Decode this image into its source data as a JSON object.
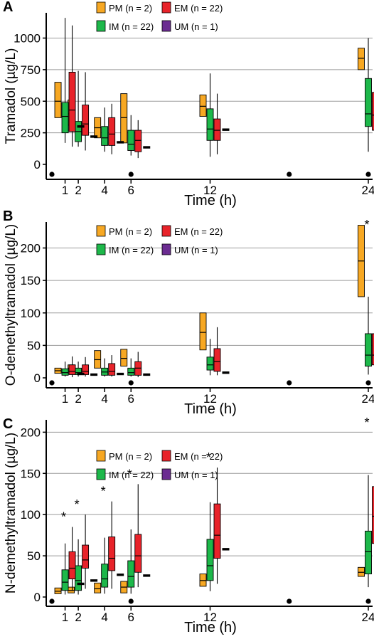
{
  "colors": {
    "PM": "#f7a823",
    "EM": "#e8232a",
    "IM": "#1db84a",
    "UM": "#6b2c91"
  },
  "chart_data": [
    {
      "type": "box",
      "panel_label": "A",
      "xlabel": "Time (h)",
      "ylabel": "Tramadol (µg/L)",
      "x_ticks": [
        1,
        2,
        4,
        6,
        12,
        24
      ],
      "y_ticks": [
        0,
        250,
        500,
        750,
        1000
      ],
      "ylim": [
        -45,
        1200
      ],
      "grid": true,
      "legend": {
        "position": "top-center",
        "entries": [
          "PM (n = 2)",
          "EM (n = 22)",
          "IM (n = 22)",
          "UM (n = 1)"
        ]
      },
      "dots_at_x": [
        0,
        6,
        18,
        24
      ],
      "series": [
        {
          "name": "PM",
          "boxes": [
            {
              "t": 1,
              "min": null,
              "q1": 370,
              "median": 500,
              "q3": 650,
              "max": null
            },
            {
              "t": 2,
              "min": null,
              "q1": 310,
              "median": 400,
              "q3": 510,
              "max": null
            },
            {
              "t": 4,
              "min": null,
              "q1": 210,
              "median": 290,
              "q3": 370,
              "max": null
            },
            {
              "t": 6,
              "min": null,
              "q1": 170,
              "median": 370,
              "q3": 560,
              "max": null
            },
            {
              "t": 12,
              "min": null,
              "q1": 380,
              "median": 460,
              "q3": 550,
              "max": null
            },
            {
              "t": 24,
              "min": null,
              "q1": 750,
              "median": 840,
              "q3": 920,
              "max": null
            }
          ]
        },
        {
          "name": "IM",
          "boxes": [
            {
              "t": 1,
              "min": 170,
              "q1": 250,
              "median": 380,
              "q3": 490,
              "max": 1160
            },
            {
              "t": 2,
              "min": 140,
              "q1": 180,
              "median": 260,
              "q3": 340,
              "max": 740
            },
            {
              "t": 4,
              "min": 100,
              "q1": 150,
              "median": 210,
              "q3": 300,
              "max": 450
            },
            {
              "t": 6,
              "min": 70,
              "q1": 110,
              "median": 160,
              "q3": 270,
              "max": 390
            },
            {
              "t": 12,
              "min": 60,
              "q1": 190,
              "median": 280,
              "q3": 440,
              "max": 720
            },
            {
              "t": 24,
              "min": 100,
              "q1": 300,
              "median": 400,
              "q3": 680,
              "max": 1000
            }
          ]
        },
        {
          "name": "EM",
          "boxes": [
            {
              "t": 1,
              "min": 140,
              "q1": 260,
              "median": 430,
              "q3": 730,
              "max": 1100
            },
            {
              "t": 2,
              "min": 110,
              "q1": 230,
              "median": 320,
              "q3": 470,
              "max": 730
            },
            {
              "t": 4,
              "min": 80,
              "q1": 150,
              "median": 240,
              "q3": 370,
              "max": 480
            },
            {
              "t": 6,
              "min": 50,
              "q1": 100,
              "median": 190,
              "q3": 270,
              "max": 350
            },
            {
              "t": 12,
              "min": 80,
              "q1": 190,
              "median": 270,
              "q3": 360,
              "max": 560
            },
            {
              "t": 24,
              "min": 90,
              "q1": 270,
              "median": 390,
              "q3": 570,
              "max": 960
            }
          ]
        },
        {
          "name": "UM",
          "points": [
            {
              "t": 1,
              "value": 300
            },
            {
              "t": 2,
              "value": 220
            },
            {
              "t": 4,
              "value": 175
            },
            {
              "t": 6,
              "value": 135
            },
            {
              "t": 12,
              "value": 275
            },
            {
              "t": 24,
              "value": 340
            }
          ]
        }
      ],
      "annotations": []
    },
    {
      "type": "box",
      "panel_label": "B",
      "xlabel": "Time (h)",
      "ylabel": "O-demethyltramadol (µg/L)",
      "x_ticks": [
        1,
        2,
        4,
        6,
        12,
        24
      ],
      "y_ticks": [
        0,
        50,
        100,
        150,
        200
      ],
      "ylim": [
        -9,
        240
      ],
      "grid": true,
      "legend": {
        "position": "top-center",
        "entries": [
          "PM (n = 2)",
          "EM (n = 22)",
          "IM (n = 22)",
          "UM (n = 1)"
        ]
      },
      "dots_at_x": [
        0,
        6,
        18,
        24
      ],
      "series": [
        {
          "name": "PM",
          "boxes": [
            {
              "t": 1,
              "min": null,
              "q1": 7,
              "median": 11,
              "q3": 15,
              "max": null
            },
            {
              "t": 2,
              "min": null,
              "q1": 10,
              "median": 15,
              "q3": 20,
              "max": null
            },
            {
              "t": 4,
              "min": null,
              "q1": 15,
              "median": 28,
              "q3": 42,
              "max": null
            },
            {
              "t": 6,
              "min": null,
              "q1": 18,
              "median": 30,
              "q3": 44,
              "max": null
            },
            {
              "t": 12,
              "min": null,
              "q1": 43,
              "median": 70,
              "q3": 100,
              "max": null
            },
            {
              "t": 24,
              "min": null,
              "q1": 125,
              "median": 180,
              "q3": 235,
              "max": null
            }
          ]
        },
        {
          "name": "IM",
          "boxes": [
            {
              "t": 1,
              "min": 2,
              "q1": 4,
              "median": 8,
              "q3": 14,
              "max": 25
            },
            {
              "t": 2,
              "min": 2,
              "q1": 5,
              "median": 8,
              "q3": 15,
              "max": 25
            },
            {
              "t": 4,
              "min": 2,
              "q1": 4,
              "median": 9,
              "q3": 15,
              "max": 30
            },
            {
              "t": 6,
              "min": 2,
              "q1": 4,
              "median": 8,
              "q3": 15,
              "max": 30
            },
            {
              "t": 12,
              "min": 4,
              "q1": 12,
              "median": 20,
              "q3": 32,
              "max": 60
            },
            {
              "t": 24,
              "min": 5,
              "q1": 18,
              "median": 35,
              "q3": 68,
              "max": 125
            }
          ]
        },
        {
          "name": "EM",
          "boxes": [
            {
              "t": 1,
              "min": 1,
              "q1": 5,
              "median": 10,
              "q3": 20,
              "max": 33
            },
            {
              "t": 2,
              "min": 2,
              "q1": 5,
              "median": 10,
              "q3": 20,
              "max": 32
            },
            {
              "t": 4,
              "min": 2,
              "q1": 4,
              "median": 10,
              "q3": 22,
              "max": 35
            },
            {
              "t": 6,
              "min": 1,
              "q1": 4,
              "median": 15,
              "q3": 25,
              "max": 40
            },
            {
              "t": 12,
              "min": 4,
              "q1": 10,
              "median": 25,
              "q3": 45,
              "max": 78
            },
            {
              "t": 24,
              "min": 5,
              "q1": 20,
              "median": 35,
              "q3": 68,
              "max": 140
            }
          ]
        },
        {
          "name": "UM",
          "points": [
            {
              "t": 1,
              "value": 6
            },
            {
              "t": 2,
              "value": 5
            },
            {
              "t": 4,
              "value": 6
            },
            {
              "t": 6,
              "value": 5
            },
            {
              "t": 12,
              "value": 8
            },
            {
              "t": 24,
              "value": 20
            }
          ]
        }
      ],
      "annotations": [
        {
          "text": "*",
          "t": 24
        }
      ]
    },
    {
      "type": "box",
      "panel_label": "C",
      "xlabel": "Time (h)",
      "ylabel": "N-demethyltramadol (µg/L)",
      "x_ticks": [
        1,
        2,
        4,
        6,
        12,
        24
      ],
      "y_ticks": [
        0,
        50,
        100,
        150,
        200
      ],
      "ylim": [
        -9,
        215
      ],
      "grid": true,
      "legend": {
        "position": "top-center",
        "entries": [
          "PM (n = 2)",
          "EM (n = 22)",
          "IM (n = 22)",
          "UM (n = 1)"
        ]
      },
      "dots_at_x": [
        0,
        6,
        18,
        24
      ],
      "series": [
        {
          "name": "PM",
          "boxes": [
            {
              "t": 1,
              "min": null,
              "q1": 4,
              "median": 7,
              "q3": 11,
              "max": null
            },
            {
              "t": 2,
              "min": null,
              "q1": 5,
              "median": 8,
              "q3": 12,
              "max": null
            },
            {
              "t": 4,
              "min": null,
              "q1": 5,
              "median": 10,
              "q3": 17,
              "max": null
            },
            {
              "t": 6,
              "min": null,
              "q1": 5,
              "median": 12,
              "q3": 19,
              "max": null
            },
            {
              "t": 12,
              "min": null,
              "q1": 13,
              "median": 20,
              "q3": 28,
              "max": null
            },
            {
              "t": 24,
              "min": null,
              "q1": 25,
              "median": 30,
              "q3": 36,
              "max": null
            }
          ]
        },
        {
          "name": "IM",
          "boxes": [
            {
              "t": 1,
              "min": 3,
              "q1": 8,
              "median": 18,
              "q3": 33,
              "max": 65
            },
            {
              "t": 2,
              "min": 3,
              "q1": 8,
              "median": 20,
              "q3": 38,
              "max": 70
            },
            {
              "t": 4,
              "min": 4,
              "q1": 12,
              "median": 22,
              "q3": 40,
              "max": 72
            },
            {
              "t": 6,
              "min": 4,
              "q1": 12,
              "median": 25,
              "q3": 44,
              "max": 82
            },
            {
              "t": 12,
              "min": 7,
              "q1": 20,
              "median": 38,
              "q3": 70,
              "max": 115
            },
            {
              "t": 24,
              "min": 12,
              "q1": 28,
              "median": 55,
              "q3": 80,
              "max": 148
            }
          ]
        },
        {
          "name": "EM",
          "boxes": [
            {
              "t": 1,
              "min": 8,
              "q1": 22,
              "median": 35,
              "q3": 55,
              "max": 85
            },
            {
              "t": 2,
              "min": 10,
              "q1": 35,
              "median": 45,
              "q3": 63,
              "max": 100
            },
            {
              "t": 4,
              "min": 10,
              "q1": 32,
              "median": 47,
              "q3": 73,
              "max": 116
            },
            {
              "t": 6,
              "min": 12,
              "q1": 30,
              "median": 50,
              "q3": 76,
              "max": 137
            },
            {
              "t": 12,
              "min": 16,
              "q1": 47,
              "median": 75,
              "q3": 113,
              "max": 157
            },
            {
              "t": 24,
              "min": 10,
              "q1": 65,
              "median": 98,
              "q3": 134,
              "max": 210
            }
          ]
        },
        {
          "name": "UM",
          "points": [
            {
              "t": 1,
              "value": 16
            },
            {
              "t": 2,
              "value": 20
            },
            {
              "t": 4,
              "value": 27
            },
            {
              "t": 6,
              "value": 26
            },
            {
              "t": 12,
              "value": 58
            },
            {
              "t": 24,
              "value": 63
            }
          ]
        }
      ],
      "annotations": [
        {
          "text": "*",
          "t": 1
        },
        {
          "text": "*",
          "t": 2
        },
        {
          "text": "*",
          "t": 4
        },
        {
          "text": "*",
          "t": 6
        },
        {
          "text": "*",
          "t": 12
        },
        {
          "text": "*",
          "t": 24
        }
      ]
    }
  ]
}
